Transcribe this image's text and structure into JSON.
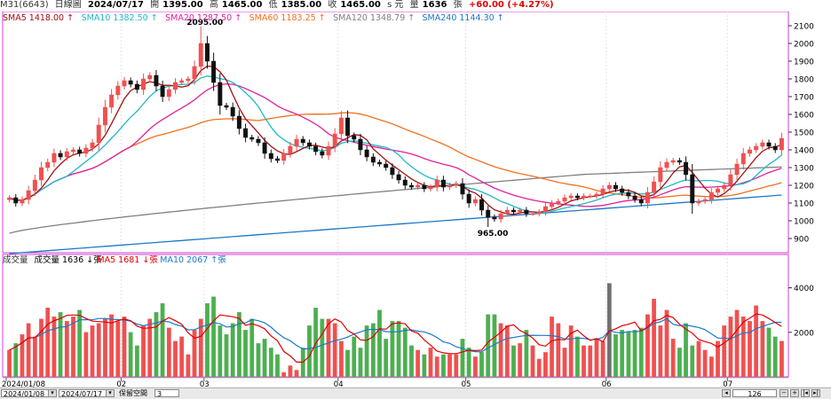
{
  "header": {
    "code": "M31(6643)",
    "period": "日線圖",
    "date": "2024/07/17",
    "open_label": "開",
    "open": "1395.00",
    "high_label": "高",
    "high": "1465.00",
    "low_label": "低",
    "low": "1385.00",
    "close_label": "收",
    "close": "1465.00",
    "close_suffix": "s 元",
    "volume_label": "量",
    "volume": "1636",
    "volume_unit": "張",
    "change": "+60.00 (+4.27%)"
  },
  "legend_price": [
    {
      "label": "SMA5",
      "value": "1418.00",
      "arrow": "↑",
      "color": "#a01010"
    },
    {
      "label": "SMA10",
      "value": "1382.50",
      "arrow": "↑",
      "color": "#20b8c8"
    },
    {
      "label": "SMA20",
      "value": "1287.50",
      "arrow": "↑",
      "color": "#e0209c"
    },
    {
      "label": "SMA60",
      "value": "1183.25",
      "arrow": "↑",
      "color": "#f07020"
    },
    {
      "label": "SMA120",
      "value": "1348.79",
      "arrow": "↑",
      "color": "#808080"
    },
    {
      "label": "SMA240",
      "value": "1144.30",
      "arrow": "↑",
      "color": "#1a78c8"
    }
  ],
  "legend_volume": [
    {
      "label": "成交量",
      "value": "",
      "arrow": "",
      "color": "#333333"
    },
    {
      "label": "成交量",
      "value": "1636",
      "arrow": "↓張",
      "color": "#000000"
    },
    {
      "label": "MA5",
      "value": "1681",
      "arrow": "↓張",
      "color": "#e00000"
    },
    {
      "label": "MA10",
      "value": "2067",
      "arrow": "↑張",
      "color": "#1a78c8"
    }
  ],
  "colors": {
    "up": "#f05050",
    "down": "#101010",
    "vol_up": "#f05050",
    "vol_down": "#4caf50",
    "vol_flat": "#707070",
    "frame": "#d040d0"
  },
  "annotations": {
    "high_label": "2095.00",
    "low_label": "965.00"
  },
  "bottom": {
    "start_date": "2024/01/08",
    "end_date": "2024/07/17",
    "keep_space_label": "保留空間",
    "keep_space_value": "3",
    "count": "126"
  },
  "chart_data": {
    "type": "candlestick",
    "price_axis": {
      "ticks": [
        900,
        1000,
        1100,
        1200,
        1300,
        1400,
        1500,
        1600,
        1700,
        1800,
        1900,
        2000,
        2100
      ],
      "range": [
        820,
        2180
      ]
    },
    "volume_axis": {
      "ticks": [
        2000,
        4000
      ],
      "range": [
        0,
        4700
      ]
    },
    "x_labels": [
      {
        "label": "2024/01/08",
        "index": 0
      },
      {
        "label": "02",
        "index": 18
      },
      {
        "label": "03",
        "index": 31
      },
      {
        "label": "04",
        "index": 52
      },
      {
        "label": "05",
        "index": 72
      },
      {
        "label": "06",
        "index": 94
      },
      {
        "label": "07",
        "index": 113
      }
    ],
    "close": [
      1130,
      1100,
      1120,
      1170,
      1230,
      1300,
      1330,
      1380,
      1360,
      1390,
      1400,
      1380,
      1410,
      1440,
      1540,
      1640,
      1710,
      1760,
      1790,
      1770,
      1740,
      1800,
      1820,
      1760,
      1700,
      1740,
      1780,
      1790,
      1800,
      1870,
      2000,
      1900,
      1780,
      1650,
      1640,
      1590,
      1520,
      1470,
      1460,
      1440,
      1380,
      1350,
      1340,
      1380,
      1420,
      1460,
      1440,
      1420,
      1390,
      1370,
      1420,
      1490,
      1580,
      1480,
      1460,
      1400,
      1360,
      1330,
      1320,
      1300,
      1260,
      1230,
      1200,
      1190,
      1200,
      1180,
      1190,
      1230,
      1190,
      1200,
      1210,
      1150,
      1100,
      1120,
      1060,
      1020,
      1010,
      1040,
      1060,
      1050,
      1060,
      1040,
      1040,
      1050,
      1080,
      1100,
      1110,
      1130,
      1140,
      1130,
      1140,
      1140,
      1150,
      1180,
      1200,
      1180,
      1160,
      1140,
      1120,
      1100,
      1160,
      1220,
      1300,
      1330,
      1340,
      1330,
      1260,
      1100,
      1110,
      1120,
      1160,
      1180,
      1200,
      1260,
      1320,
      1380,
      1400,
      1420,
      1440,
      1420,
      1400,
      1465
    ],
    "volume": [
      1200,
      1500,
      1900,
      2400,
      1800,
      2600,
      3100,
      2700,
      2900,
      2500,
      2700,
      3000,
      2000,
      2300,
      2400,
      2600,
      2800,
      2500,
      2700,
      2000,
      1400,
      2300,
      2600,
      2900,
      3300,
      2200,
      1600,
      1800,
      1000,
      2100,
      2600,
      3300,
      3600,
      2300,
      1900,
      2400,
      2900,
      2100,
      2600,
      1500,
      1700,
      1300,
      1000,
      200,
      500,
      300,
      1300,
      2300,
      3100,
      2600,
      2600,
      2400,
      1600,
      1200,
      1800,
      1300,
      2300,
      2400,
      3000,
      1700,
      2500,
      2500,
      2200,
      1400,
      1200,
      1000,
      1300,
      900,
      1000,
      1000,
      1000,
      1700,
      1300,
      900,
      1100,
      2800,
      2800,
      2400,
      2300,
      1400,
      1500,
      2100,
      1400,
      800,
      1100,
      2700,
      2400,
      1300,
      2300,
      1800,
      1400,
      1400,
      1700,
      1600,
      4200,
      1900,
      2100,
      2000,
      2100,
      2200,
      2800,
      3500,
      2300,
      3000,
      1700,
      1300,
      2400,
      1400,
      1600,
      1200,
      900,
      1600,
      2300,
      2700,
      3000,
      2700,
      2500,
      3200,
      2500,
      2200,
      1800,
      1600
    ],
    "high_point": {
      "index": 30,
      "value": 2095
    },
    "low_point": {
      "index": 75,
      "value": 965
    }
  }
}
